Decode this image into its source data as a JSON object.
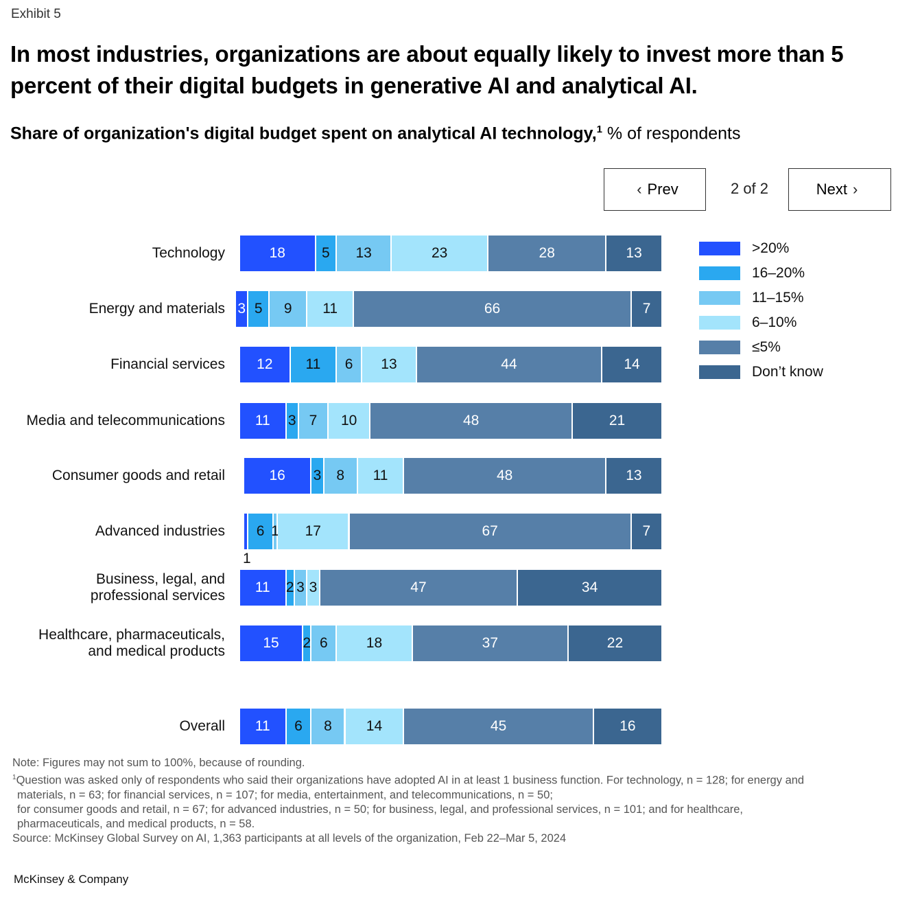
{
  "exhibit_label": "Exhibit 5",
  "title": "In most industries, organizations are about equally likely to invest more than 5 percent of their digital budgets in generative AI and analytical AI.",
  "subtitle": {
    "bold": "Share of organization's digital budget spent on analytical AI technology,",
    "superscript": "1",
    "regular": " % of respondents"
  },
  "pager": {
    "prev_label": "Prev",
    "next_label": "Next",
    "indicator": "2 of 2"
  },
  "chart_data": {
    "type": "bar",
    "orientation": "horizontal",
    "stacked": true,
    "title": "Share of organization's digital budget spent on analytical AI technology, % of respondents",
    "xlabel": "",
    "ylabel": "",
    "xlim": [
      0,
      100
    ],
    "legend_position": "right",
    "categories": [
      "Technology",
      "Energy and materials",
      "Financial services",
      "Media and telecommunications",
      "Consumer goods and retail",
      "Advanced industries",
      "Business, legal, and professional services",
      "Healthcare, pharmaceuticals, and medical products",
      "Overall"
    ],
    "category_display": [
      [
        "Technology"
      ],
      [
        "Energy and materials"
      ],
      [
        "Financial services"
      ],
      [
        "Media and telecommunications"
      ],
      [
        "Consumer goods and retail"
      ],
      [
        "Advanced industries"
      ],
      [
        "Business, legal, and",
        "professional services"
      ],
      [
        "Healthcare, pharmaceuticals,",
        "and medical products"
      ],
      [
        "Overall"
      ]
    ],
    "series": [
      {
        "name": ">20%",
        "color": "#2251FF",
        "text_color": "#FFFFFF",
        "values": [
          18,
          3,
          12,
          11,
          16,
          1,
          11,
          15,
          11
        ]
      },
      {
        "name": "16–20%",
        "color": "#2AA8F0",
        "text_color": "#111111",
        "values": [
          5,
          5,
          11,
          3,
          3,
          6,
          2,
          2,
          6
        ]
      },
      {
        "name": "11–15%",
        "color": "#76C9F3",
        "text_color": "#111111",
        "values": [
          13,
          9,
          6,
          7,
          8,
          1,
          3,
          6,
          8
        ]
      },
      {
        "name": "6–10%",
        "color": "#A3E4FC",
        "text_color": "#111111",
        "values": [
          23,
          11,
          13,
          10,
          11,
          17,
          3,
          18,
          14
        ]
      },
      {
        "name": "≤5%",
        "color": "#567FA8",
        "text_color": "#FFFFFF",
        "values": [
          28,
          66,
          44,
          48,
          48,
          67,
          47,
          37,
          45
        ]
      },
      {
        "name": "Don’t know",
        "color": "#3B6690",
        "text_color": "#FFFFFF",
        "values": [
          13,
          7,
          14,
          21,
          13,
          7,
          34,
          22,
          16
        ]
      }
    ],
    "outside_labels": [
      {
        "category": "Advanced industries",
        "series": ">20%",
        "value": 1,
        "placement": "below"
      }
    ]
  },
  "notes": {
    "note": "Note: Figures may not sum to 100%, because of rounding.",
    "footnote_marker": "1",
    "footnote_lines": [
      "Question was asked only of respondents who said their organizations have adopted AI in at least 1 business function. For technology, n = 128; for energy and",
      "materials, n = 63; for financial services, n = 107; for media, entertainment, and telecommunications, n = 50;",
      "for consumer goods and retail, n = 67; for advanced industries, n = 50; for business, legal, and professional services, n = 101; and for healthcare,",
      "pharmaceuticals, and medical products, n = 58."
    ],
    "source": "Source: McKinsey Global Survey on AI, 1,363 participants at all levels of the organization, Feb 22–Mar 5, 2024"
  },
  "brand": "McKinsey & Company"
}
